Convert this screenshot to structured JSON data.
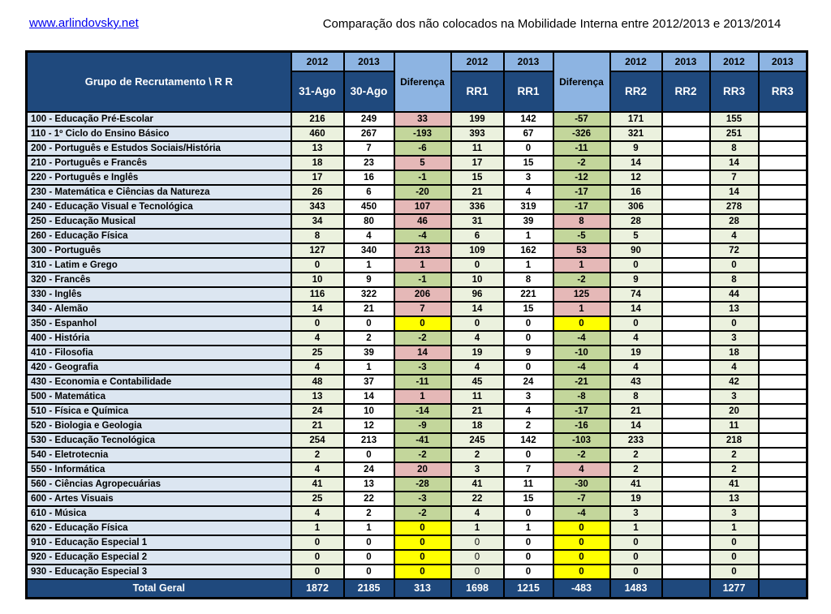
{
  "page": {
    "link": "www.arlindovsky.net",
    "title": "Comparação dos não colocados na Mobilidade Interna entre 2012/2013 e 2013/2014"
  },
  "colors": {
    "navy": "#1f497d",
    "lightblue": "#8db4e2",
    "labelbg": "#dce6f1",
    "palegreen": "#ebf1de",
    "diffneg": "#c3d69b",
    "diffpos": "#e5b8b7",
    "diffzero": "#ffff00",
    "linkblue": "#0000ee"
  },
  "table": {
    "corner_header": "Grupo de Recrutamento \\ R R",
    "col_groups": [
      {
        "year": "2012",
        "sub": "31-Ago"
      },
      {
        "year": "2013",
        "sub": "30-Ago"
      },
      {
        "diff": "Diferença"
      },
      {
        "year": "2012",
        "sub": "RR1"
      },
      {
        "year": "2013",
        "sub": "RR1"
      },
      {
        "diff": "Diferença"
      },
      {
        "year": "2012",
        "sub": "RR2"
      },
      {
        "year": "2013",
        "sub": "RR2"
      },
      {
        "year": "2012",
        "sub": "RR3"
      },
      {
        "year": "2013",
        "sub": "RR3"
      }
    ],
    "rows": [
      {
        "label": "100 - Educação Pré-Escolar",
        "values": [
          216,
          249,
          33,
          199,
          142,
          -57,
          171,
          "",
          155,
          ""
        ]
      },
      {
        "label": "110 - 1º Ciclo do Ensino Básico",
        "values": [
          460,
          267,
          -193,
          393,
          67,
          -326,
          321,
          "",
          251,
          ""
        ]
      },
      {
        "label": "200 - Português e Estudos Sociais/História",
        "values": [
          13,
          7,
          -6,
          11,
          0,
          -11,
          9,
          "",
          8,
          ""
        ]
      },
      {
        "label": "210 - Português e Francês",
        "values": [
          18,
          23,
          5,
          17,
          15,
          -2,
          14,
          "",
          14,
          ""
        ]
      },
      {
        "label": "220 - Português e Inglês",
        "values": [
          17,
          16,
          -1,
          15,
          3,
          -12,
          12,
          "",
          7,
          ""
        ]
      },
      {
        "label": "230 - Matemática e Ciências da Natureza",
        "values": [
          26,
          6,
          -20,
          21,
          4,
          -17,
          16,
          "",
          14,
          ""
        ]
      },
      {
        "label": "240 - Educação Visual e Tecnológica",
        "values": [
          343,
          450,
          107,
          336,
          319,
          -17,
          306,
          "",
          278,
          ""
        ]
      },
      {
        "label": "250 - Educação Musical",
        "values": [
          34,
          80,
          46,
          31,
          39,
          8,
          28,
          "",
          28,
          ""
        ]
      },
      {
        "label": "260 - Educação Física",
        "values": [
          8,
          4,
          -4,
          6,
          1,
          -5,
          5,
          "",
          4,
          ""
        ]
      },
      {
        "label": "300 - Português",
        "values": [
          127,
          340,
          213,
          109,
          162,
          53,
          90,
          "",
          72,
          ""
        ]
      },
      {
        "label": "310 - Latim e Grego",
        "values": [
          0,
          1,
          1,
          0,
          1,
          1,
          0,
          "",
          0,
          ""
        ]
      },
      {
        "label": "320 - Francês",
        "values": [
          10,
          9,
          -1,
          10,
          8,
          -2,
          9,
          "",
          8,
          ""
        ]
      },
      {
        "label": "330 - Inglês",
        "values": [
          116,
          322,
          206,
          96,
          221,
          125,
          74,
          "",
          44,
          ""
        ]
      },
      {
        "label": "340 - Alemão",
        "values": [
          14,
          21,
          7,
          14,
          15,
          1,
          14,
          "",
          13,
          ""
        ]
      },
      {
        "label": "350 - Espanhol",
        "values": [
          0,
          0,
          0,
          0,
          0,
          0,
          0,
          "",
          0,
          ""
        ]
      },
      {
        "label": "400 - História",
        "values": [
          4,
          2,
          -2,
          4,
          0,
          -4,
          4,
          "",
          3,
          ""
        ]
      },
      {
        "label": "410 - Filosofia",
        "values": [
          25,
          39,
          14,
          19,
          9,
          -10,
          19,
          "",
          18,
          ""
        ]
      },
      {
        "label": "420 - Geografia",
        "values": [
          4,
          1,
          -3,
          4,
          0,
          -4,
          4,
          "",
          4,
          ""
        ]
      },
      {
        "label": "430 - Economia e Contabilidade",
        "values": [
          48,
          37,
          -11,
          45,
          24,
          -21,
          43,
          "",
          42,
          ""
        ]
      },
      {
        "label": "500 - Matemática",
        "values": [
          13,
          14,
          1,
          11,
          3,
          -8,
          8,
          "",
          3,
          ""
        ]
      },
      {
        "label": "510 - Física e Química",
        "values": [
          24,
          10,
          -14,
          21,
          4,
          -17,
          21,
          "",
          20,
          ""
        ]
      },
      {
        "label": "520 - Biologia e Geologia",
        "values": [
          21,
          12,
          -9,
          18,
          2,
          -16,
          14,
          "",
          11,
          ""
        ]
      },
      {
        "label": "530 - Educação Tecnológica",
        "values": [
          254,
          213,
          -41,
          245,
          142,
          -103,
          233,
          "",
          218,
          ""
        ]
      },
      {
        "label": "540 - Eletrotecnia",
        "values": [
          2,
          0,
          -2,
          2,
          0,
          -2,
          2,
          "",
          2,
          ""
        ]
      },
      {
        "label": "550 - Informática",
        "values": [
          4,
          24,
          20,
          3,
          7,
          4,
          2,
          "",
          2,
          ""
        ]
      },
      {
        "label": "560 - Ciências Agropecuárias",
        "values": [
          41,
          13,
          -28,
          41,
          11,
          -30,
          41,
          "",
          41,
          ""
        ]
      },
      {
        "label": "600 - Artes Visuais",
        "values": [
          25,
          22,
          -3,
          22,
          15,
          -7,
          19,
          "",
          13,
          ""
        ]
      },
      {
        "label": "610 - Música",
        "values": [
          4,
          2,
          -2,
          4,
          0,
          -4,
          3,
          "",
          3,
          ""
        ]
      },
      {
        "label": "620 - Educação Física",
        "values": [
          1,
          1,
          0,
          1,
          1,
          0,
          1,
          "",
          1,
          ""
        ]
      },
      {
        "label": "910 - Educação Especial 1",
        "values": [
          0,
          0,
          0,
          0,
          0,
          0,
          0,
          "",
          0,
          ""
        ]
      },
      {
        "label": "920 - Educação Especial 2",
        "values": [
          0,
          0,
          0,
          0,
          0,
          0,
          0,
          "",
          0,
          ""
        ]
      },
      {
        "label": "930 - Educação Especial 3",
        "values": [
          0,
          0,
          0,
          0,
          0,
          0,
          0,
          "",
          0,
          ""
        ]
      }
    ],
    "total": {
      "label": "Total Geral",
      "values": [
        1872,
        2185,
        313,
        1698,
        1215,
        -483,
        1483,
        "",
        1277,
        ""
      ]
    }
  }
}
